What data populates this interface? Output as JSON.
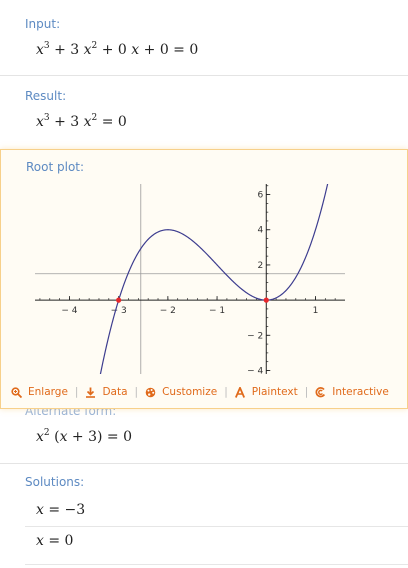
{
  "input": {
    "title": "Input:"
  },
  "result": {
    "title": "Result:"
  },
  "root_plot": {
    "title": "Root plot:",
    "toolbar": {
      "enlarge": "Enlarge",
      "data": "Data",
      "customize": "Customize",
      "plaintext": "Plaintext",
      "interactive": "Interactive"
    }
  },
  "alternate": {
    "title": "Alternate form:"
  },
  "solutions": {
    "title": "Solutions:"
  },
  "colors": {
    "accent": "#e06a1b",
    "title": "#5d8ac2",
    "curve": "#3d3d8f",
    "root": "#e8262a"
  },
  "chart_data": {
    "type": "line",
    "function": "x^3 + 3x^2",
    "xlim": [
      -4.7,
      1.6
    ],
    "ylim": [
      -4.2,
      6.6
    ],
    "x_ticks": [
      -4,
      -3,
      -2,
      -1,
      1
    ],
    "x_tick_labels": [
      "− 4",
      "− 3",
      "− 2",
      "− 1",
      "1"
    ],
    "y_ticks": [
      -4,
      -2,
      2,
      4,
      6
    ],
    "y_tick_labels": [
      "− 4",
      "− 2",
      "2",
      "4",
      "6"
    ],
    "roots": [
      {
        "x": -3,
        "y": 0
      },
      {
        "x": 0,
        "y": 0
      }
    ],
    "crosshair": {
      "x": -2.55,
      "y": 1.5
    },
    "grid": false
  }
}
